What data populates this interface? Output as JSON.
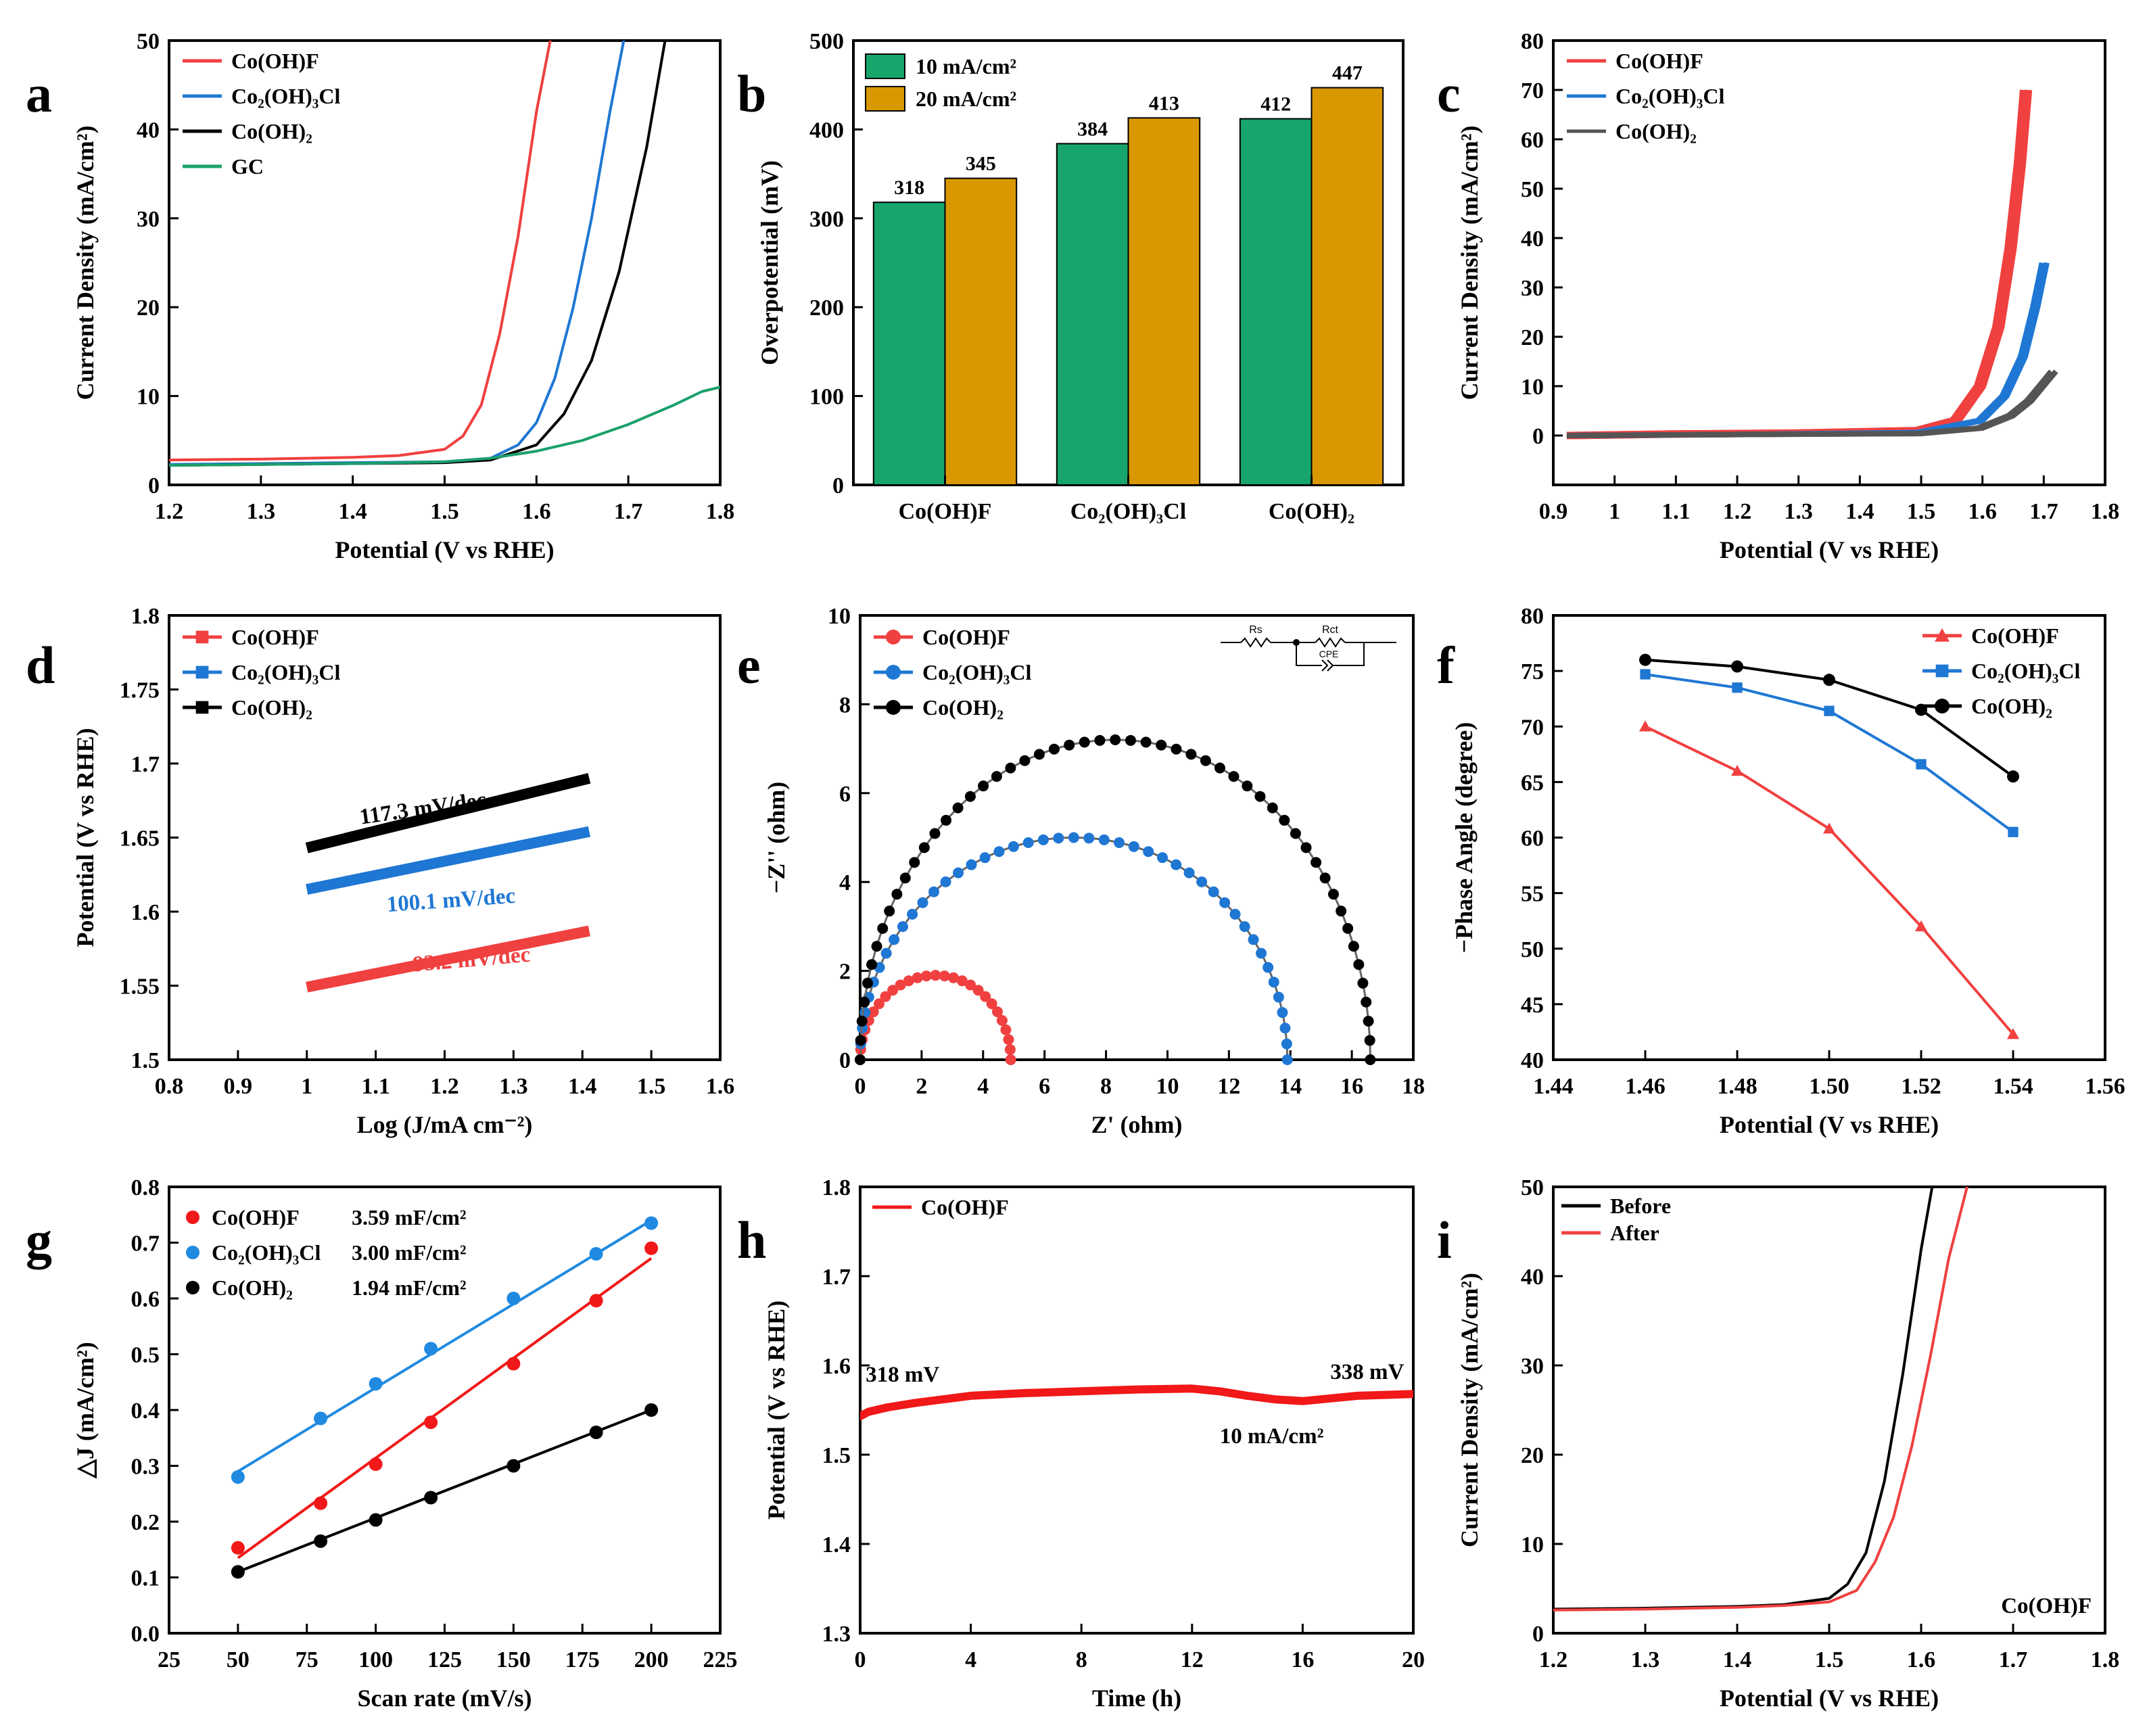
{
  "chart_data": [
    {
      "panel": "a",
      "type": "line",
      "xlabel": "Potential (V vs RHE)",
      "ylabel": "Current Density (mA/cm²)",
      "xlim": [
        1.2,
        1.8
      ],
      "ylim": [
        0,
        50
      ],
      "xticks": [
        1.2,
        1.3,
        1.4,
        1.5,
        1.6,
        1.7,
        1.8
      ],
      "yticks": [
        0,
        10,
        20,
        30,
        40,
        50
      ],
      "legend": "top-left",
      "series": [
        {
          "name": "Co(OH)F",
          "color": "#f04040",
          "x": [
            1.2,
            1.3,
            1.4,
            1.45,
            1.5,
            1.52,
            1.54,
            1.56,
            1.58,
            1.6,
            1.615
          ],
          "y": [
            2.8,
            2.9,
            3.1,
            3.3,
            4.0,
            5.5,
            9.0,
            17.0,
            28.0,
            42.0,
            50.0
          ]
        },
        {
          "name": "Co₂(OH)₃Cl",
          "color": "#1f77d4",
          "x": [
            1.2,
            1.3,
            1.4,
            1.5,
            1.55,
            1.58,
            1.6,
            1.62,
            1.64,
            1.66,
            1.68,
            1.695
          ],
          "y": [
            2.3,
            2.4,
            2.5,
            2.6,
            3.0,
            4.5,
            7.0,
            12.0,
            20.0,
            30.0,
            42.0,
            50.0
          ]
        },
        {
          "name": "Co(OH)₂",
          "color": "#000000",
          "x": [
            1.2,
            1.3,
            1.4,
            1.5,
            1.55,
            1.6,
            1.63,
            1.66,
            1.69,
            1.72,
            1.74
          ],
          "y": [
            2.2,
            2.3,
            2.4,
            2.5,
            2.8,
            4.5,
            8.0,
            14.0,
            24.0,
            38.0,
            50.0
          ]
        },
        {
          "name": "GC",
          "color": "#1aa06b",
          "x": [
            1.2,
            1.3,
            1.4,
            1.5,
            1.55,
            1.6,
            1.65,
            1.7,
            1.75,
            1.78,
            1.8
          ],
          "y": [
            2.2,
            2.3,
            2.4,
            2.6,
            3.0,
            3.8,
            5.0,
            6.8,
            9.0,
            10.5,
            11.0
          ]
        }
      ]
    },
    {
      "panel": "b",
      "type": "bar",
      "xlabel": "",
      "ylabel": "Overpotential (mV)",
      "ylim": [
        0,
        500
      ],
      "yticks": [
        0,
        100,
        200,
        300,
        400,
        500
      ],
      "categories": [
        "Co(OH)F",
        "Co₂(OH)₃Cl",
        "Co(OH)₂"
      ],
      "legend": "top-left",
      "series": [
        {
          "name": "10 mA/cm²",
          "color": "#17a56b",
          "values": [
            318,
            384,
            412
          ],
          "labels": [
            "318",
            "384",
            "412"
          ]
        },
        {
          "name": "20 mA/cm²",
          "color": "#d99800",
          "values": [
            345,
            413,
            447
          ],
          "labels": [
            "345",
            "413",
            "447"
          ]
        }
      ]
    },
    {
      "panel": "c",
      "type": "line",
      "xlabel": "Potential (V vs RHE)",
      "ylabel": "Current Density (mA/cm²)",
      "xlim": [
        0.9,
        1.8
      ],
      "ylim": [
        -10,
        80
      ],
      "xticks": [
        0.9,
        1.0,
        1.1,
        1.2,
        1.3,
        1.4,
        1.5,
        1.6,
        1.7,
        1.8
      ],
      "yticks": [
        0,
        10,
        20,
        30,
        40,
        50,
        60,
        70,
        80
      ],
      "legend": "top-left",
      "series": [
        {
          "name": "Co(OH)F",
          "color": "#f04040",
          "x": [
            0.93,
            1.1,
            1.3,
            1.5,
            1.56,
            1.6,
            1.63,
            1.65,
            1.665,
            1.675
          ],
          "y": [
            0,
            0.3,
            0.5,
            1.0,
            3.0,
            10.0,
            22.0,
            38.0,
            55.0,
            70.0
          ]
        },
        {
          "name": "Co₂(OH)₃Cl",
          "color": "#1f77d4",
          "x": [
            0.93,
            1.2,
            1.5,
            1.6,
            1.64,
            1.67,
            1.69,
            1.705
          ],
          "y": [
            0,
            0.2,
            0.6,
            3.0,
            8.0,
            16.0,
            26.0,
            35.0
          ]
        },
        {
          "name": "Co(OH)₂",
          "color": "#555555",
          "x": [
            0.93,
            1.2,
            1.5,
            1.6,
            1.65,
            1.68,
            1.7,
            1.72
          ],
          "y": [
            0,
            0.2,
            0.4,
            1.5,
            4.0,
            7.0,
            10.0,
            13.0
          ]
        }
      ]
    },
    {
      "panel": "d",
      "type": "line",
      "xlabel": "Log (J/mA cm⁻²)",
      "ylabel": "Potential (V vs RHE)",
      "xlim": [
        0.8,
        1.6
      ],
      "ylim": [
        1.5,
        1.8
      ],
      "xticks": [
        0.8,
        0.9,
        1.0,
        1.1,
        1.2,
        1.3,
        1.4,
        1.5,
        1.6
      ],
      "yticks": [
        1.5,
        1.55,
        1.6,
        1.65,
        1.7,
        1.75,
        1.8
      ],
      "legend": "top-left",
      "series": [
        {
          "name": "Co(OH)F",
          "color": "#f04040",
          "x": [
            1.0,
            1.41
          ],
          "y": [
            1.549,
            1.587
          ],
          "slope_label": "93.2 mV/dec"
        },
        {
          "name": "Co₂(OH)₃Cl",
          "color": "#1f77d4",
          "x": [
            1.0,
            1.41
          ],
          "y": [
            1.615,
            1.654
          ],
          "slope_label": "100.1 mV/dec"
        },
        {
          "name": "Co(OH)₂",
          "color": "#000000",
          "x": [
            1.0,
            1.41
          ],
          "y": [
            1.643,
            1.69
          ],
          "slope_label": "117.3 mV/dec"
        }
      ]
    },
    {
      "panel": "e",
      "type": "scatter",
      "xlabel": "Z' (ohm)",
      "ylabel": "−Z'' (ohm)",
      "xlim": [
        0,
        18
      ],
      "ylim": [
        0,
        10
      ],
      "xticks": [
        0,
        2,
        4,
        6,
        8,
        10,
        12,
        14,
        16,
        18
      ],
      "yticks": [
        0,
        2,
        4,
        6,
        8,
        10
      ],
      "legend": "top-left",
      "circuit_labels": [
        "Rs",
        "Rct",
        "CPE"
      ],
      "series": [
        {
          "name": "Co(OH)F",
          "color": "#f04040",
          "center": 2.45,
          "radius": 2.45,
          "peak": 1.9
        },
        {
          "name": "Co₂(OH)₃Cl",
          "color": "#1f77d4",
          "center": 6.95,
          "radius": 6.95,
          "peak": 5.0
        },
        {
          "name": "Co(OH)₂",
          "color": "#000000",
          "center": 8.3,
          "radius": 8.3,
          "peak": 7.2
        }
      ]
    },
    {
      "panel": "f",
      "type": "line",
      "xlabel": "Potential (V vs RHE)",
      "ylabel": "−Phase Angle (degree)",
      "xlim": [
        1.44,
        1.56
      ],
      "ylim": [
        40,
        80
      ],
      "xticks": [
        1.44,
        1.46,
        1.48,
        1.5,
        1.52,
        1.54,
        1.56
      ],
      "xtick_labels": [
        "1.44",
        "1.46",
        "1.48",
        "1.50",
        "1.52",
        "1.54",
        "1.56"
      ],
      "yticks": [
        40,
        45,
        50,
        55,
        60,
        65,
        70,
        75,
        80
      ],
      "legend": "top-right",
      "series": [
        {
          "name": "Co(OH)F",
          "color": "#f04040",
          "marker": "triangle",
          "x": [
            1.46,
            1.48,
            1.5,
            1.52,
            1.54
          ],
          "y": [
            70.0,
            66.0,
            60.8,
            52.0,
            42.3
          ]
        },
        {
          "name": "Co₂(OH)₃Cl",
          "color": "#1f77d4",
          "marker": "square",
          "x": [
            1.46,
            1.48,
            1.5,
            1.52,
            1.54
          ],
          "y": [
            74.7,
            73.5,
            71.4,
            66.6,
            60.5
          ]
        },
        {
          "name": "Co(OH)₂",
          "color": "#000000",
          "marker": "circle",
          "x": [
            1.46,
            1.48,
            1.5,
            1.52,
            1.54
          ],
          "y": [
            76.0,
            75.4,
            74.2,
            71.5,
            65.5
          ]
        }
      ]
    },
    {
      "panel": "g",
      "type": "scatter",
      "xlabel": "Scan rate (mV/s)",
      "ylabel": "△J (mA/cm²)",
      "xlim": [
        25,
        225
      ],
      "ylim": [
        0,
        0.8
      ],
      "xticks": [
        25,
        50,
        75,
        100,
        125,
        150,
        175,
        200,
        225
      ],
      "yticks": [
        0.0,
        0.1,
        0.2,
        0.3,
        0.4,
        0.5,
        0.6,
        0.7,
        0.8
      ],
      "ytick_labels": [
        "0.0",
        "0.1",
        "0.2",
        "0.3",
        "0.4",
        "0.5",
        "0.6",
        "0.7",
        "0.8"
      ],
      "legend": "top-left",
      "series": [
        {
          "name": "Co(OH)F",
          "capacitance": "3.59 mF/cm²",
          "color": "#f01818",
          "x": [
            50,
            80,
            100,
            120,
            150,
            180,
            200
          ],
          "y": [
            0.153,
            0.233,
            0.303,
            0.378,
            0.483,
            0.596,
            0.69
          ],
          "fit": [
            [
              50,
              0.135
            ],
            [
              200,
              0.672
            ]
          ]
        },
        {
          "name": "Co₂(OH)₃Cl",
          "capacitance": "3.00 mF/cm²",
          "color": "#1f8ae0",
          "x": [
            50,
            80,
            100,
            120,
            150,
            180,
            200
          ],
          "y": [
            0.28,
            0.385,
            0.447,
            0.51,
            0.6,
            0.68,
            0.735
          ],
          "fit": [
            [
              50,
              0.29
            ],
            [
              200,
              0.74
            ]
          ]
        },
        {
          "name": "Co(OH)₂",
          "capacitance": "1.94 mF/cm²",
          "color": "#000000",
          "x": [
            50,
            80,
            100,
            120,
            150,
            180,
            200
          ],
          "y": [
            0.11,
            0.165,
            0.203,
            0.243,
            0.3,
            0.36,
            0.4
          ],
          "fit": [
            [
              50,
              0.11
            ],
            [
              200,
              0.4
            ]
          ]
        }
      ]
    },
    {
      "panel": "h",
      "type": "line",
      "xlabel": "Time (h)",
      "ylabel": "Potential (V vs RHE)",
      "xlim": [
        0,
        20
      ],
      "ylim": [
        1.3,
        1.8
      ],
      "xticks": [
        0,
        4,
        8,
        12,
        16,
        20
      ],
      "yticks": [
        1.3,
        1.4,
        1.5,
        1.6,
        1.7,
        1.8
      ],
      "legend": "top-left",
      "annotations": [
        "318 mV",
        "338 mV",
        "10 mA/cm²"
      ],
      "series": [
        {
          "name": "Co(OH)F",
          "color": "#f01818",
          "x": [
            0,
            0.3,
            1,
            2,
            3,
            4,
            6,
            8,
            10,
            12,
            13,
            14,
            15,
            16,
            17,
            18,
            19,
            20
          ],
          "y": [
            1.543,
            1.548,
            1.553,
            1.558,
            1.562,
            1.566,
            1.569,
            1.571,
            1.573,
            1.574,
            1.571,
            1.566,
            1.562,
            1.56,
            1.563,
            1.566,
            1.567,
            1.568
          ]
        }
      ]
    },
    {
      "panel": "i",
      "type": "line",
      "xlabel": "Potential (V vs RHE)",
      "ylabel": "Current Density (mA/cm²)",
      "xlim": [
        1.2,
        1.8
      ],
      "ylim": [
        0,
        50
      ],
      "xticks": [
        1.2,
        1.3,
        1.4,
        1.5,
        1.6,
        1.7,
        1.8
      ],
      "yticks": [
        0,
        10,
        20,
        30,
        40,
        50
      ],
      "legend": "top-left",
      "annotations": [
        "Co(OH)F"
      ],
      "series": [
        {
          "name": "Before",
          "color": "#000000",
          "x": [
            1.2,
            1.3,
            1.4,
            1.45,
            1.5,
            1.52,
            1.54,
            1.56,
            1.58,
            1.6,
            1.612
          ],
          "y": [
            2.7,
            2.8,
            3.0,
            3.2,
            3.9,
            5.5,
            9.0,
            17.0,
            29.0,
            43.0,
            50.0
          ]
        },
        {
          "name": "After",
          "color": "#f04040",
          "x": [
            1.2,
            1.3,
            1.4,
            1.45,
            1.5,
            1.53,
            1.55,
            1.57,
            1.59,
            1.61,
            1.63,
            1.65
          ],
          "y": [
            2.6,
            2.7,
            2.9,
            3.1,
            3.5,
            4.8,
            8.0,
            13.0,
            21.0,
            31.0,
            42.0,
            50.0
          ]
        }
      ]
    }
  ]
}
